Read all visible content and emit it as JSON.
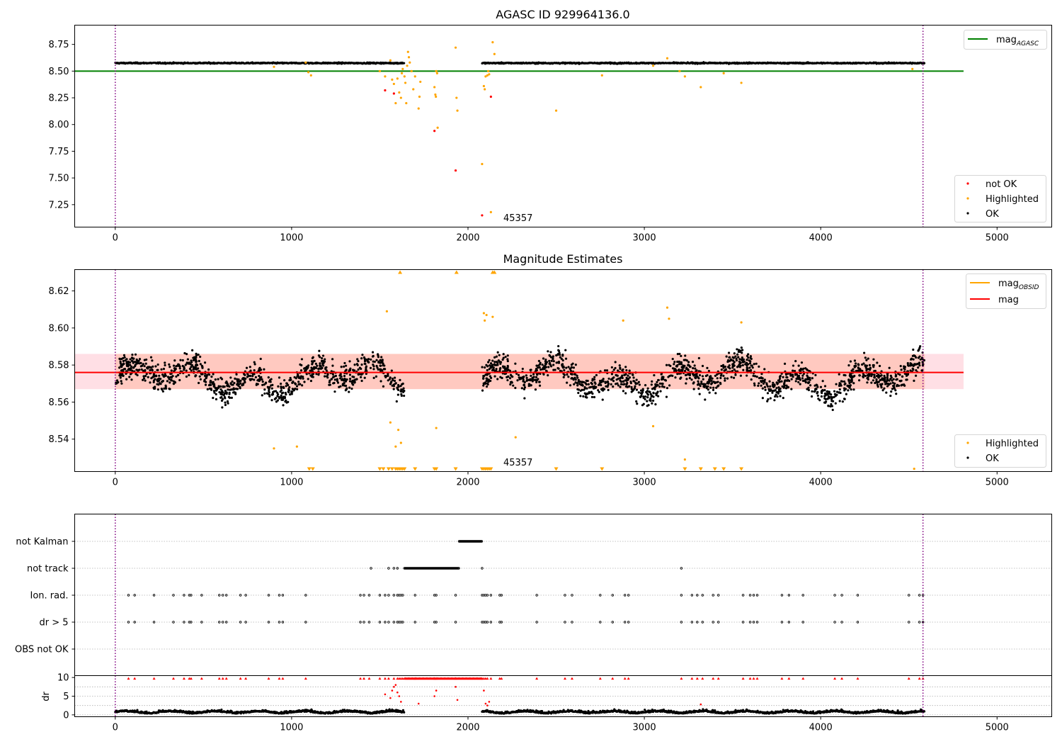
{
  "chart_data": [
    {
      "type": "scatter",
      "title": "AGASC ID 929964136.0",
      "xlim": [
        -230,
        5310
      ],
      "ylim": [
        7.04,
        8.93
      ],
      "xticks": [
        "0",
        "1000",
        "2000",
        "3000",
        "4000",
        "5000"
      ],
      "yticks": [
        "7.25",
        "7.50",
        "7.75",
        "8.00",
        "8.25",
        "8.50",
        "8.75"
      ],
      "annotation": "45357",
      "legend_top": [
        {
          "label_main": "mag",
          "label_sub": "AGASC",
          "color": "#008000"
        }
      ],
      "legend_bottom": [
        {
          "label": "not OK",
          "color": "#ff0000"
        },
        {
          "label": "Highlighted",
          "color": "#ffa500"
        },
        {
          "label": "OK",
          "color": "#000000"
        }
      ],
      "mag_agasc": 8.5,
      "mag_agasc_xrange": [
        -230,
        4810
      ],
      "vlines_x": [
        0,
        4580
      ],
      "ok_band": {
        "segments": [
          [
            0,
            1640
          ],
          [
            2080,
            4590
          ]
        ],
        "level": 8.575,
        "scatter": 0.012
      },
      "highlighted_points": [
        [
          900,
          8.54
        ],
        [
          1080,
          8.58
        ],
        [
          1095,
          8.49
        ],
        [
          1110,
          8.46
        ],
        [
          1500,
          8.5
        ],
        [
          1530,
          8.45
        ],
        [
          1560,
          8.6
        ],
        [
          1570,
          8.42
        ],
        [
          1580,
          8.38
        ],
        [
          1590,
          8.2
        ],
        [
          1600,
          8.43
        ],
        [
          1610,
          8.3
        ],
        [
          1620,
          8.25
        ],
        [
          1625,
          8.48
        ],
        [
          1630,
          8.52
        ],
        [
          1640,
          8.45
        ],
        [
          1645,
          8.39
        ],
        [
          1650,
          8.2
        ],
        [
          1655,
          8.55
        ],
        [
          1660,
          8.68
        ],
        [
          1665,
          8.63
        ],
        [
          1670,
          8.58
        ],
        [
          1680,
          8.5
        ],
        [
          1690,
          8.33
        ],
        [
          1700,
          8.45
        ],
        [
          1720,
          8.15
        ],
        [
          1725,
          8.26
        ],
        [
          1730,
          8.4
        ],
        [
          1810,
          8.35
        ],
        [
          1815,
          8.28
        ],
        [
          1818,
          8.26
        ],
        [
          1820,
          8.5
        ],
        [
          1825,
          8.48
        ],
        [
          1828,
          7.97
        ],
        [
          1930,
          8.72
        ],
        [
          1935,
          8.25
        ],
        [
          1940,
          8.13
        ],
        [
          2080,
          7.63
        ],
        [
          2090,
          8.36
        ],
        [
          2095,
          8.33
        ],
        [
          2100,
          8.45
        ],
        [
          2110,
          8.46
        ],
        [
          2115,
          8.5
        ],
        [
          2120,
          8.47
        ],
        [
          2130,
          7.18
        ],
        [
          2140,
          8.77
        ],
        [
          2150,
          8.66
        ],
        [
          2500,
          8.13
        ],
        [
          2760,
          8.46
        ],
        [
          3050,
          8.55
        ],
        [
          3130,
          8.62
        ],
        [
          3200,
          8.5
        ],
        [
          3230,
          8.45
        ],
        [
          3320,
          8.35
        ],
        [
          3450,
          8.48
        ],
        [
          3550,
          8.39
        ],
        [
          4520,
          8.52
        ]
      ],
      "notok_points": [
        [
          1530,
          8.32
        ],
        [
          1580,
          8.29
        ],
        [
          1810,
          7.94
        ],
        [
          1930,
          7.57
        ],
        [
          2080,
          7.15
        ],
        [
          2130,
          8.26
        ]
      ]
    },
    {
      "type": "scatter",
      "title": "Magnitude Estimates",
      "xlim": [
        -230,
        5310
      ],
      "ylim": [
        8.5225,
        8.6315
      ],
      "xticks": [
        "0",
        "1000",
        "2000",
        "3000",
        "4000",
        "5000"
      ],
      "yticks": [
        "8.54",
        "8.56",
        "8.58",
        "8.60",
        "8.62"
      ],
      "annotation": "45357",
      "legend_top": [
        {
          "label_main": "mag",
          "label_sub": "OBSID",
          "color": "#ffa500"
        },
        {
          "label_main": "mag",
          "label_sub": "",
          "color": "#ff0000"
        }
      ],
      "legend_bottom": [
        {
          "label": "Highlighted",
          "color": "#ffa500"
        },
        {
          "label": "OK",
          "color": "#000000"
        }
      ],
      "mag_line": 8.576,
      "mag_band": [
        8.567,
        8.586
      ],
      "band_xrange": [
        -230,
        4810
      ],
      "band_dark_xrange": [
        0,
        4590
      ],
      "vlines_x": [
        0,
        4580
      ],
      "ok_band": {
        "segments": [
          [
            0,
            1640
          ],
          [
            2080,
            4590
          ]
        ],
        "level": 8.573,
        "scatter": 0.009
      },
      "highlighted_points": [
        [
          900,
          8.535
        ],
        [
          1030,
          8.536
        ],
        [
          1540,
          8.609
        ],
        [
          1560,
          8.549
        ],
        [
          1590,
          8.536
        ],
        [
          1605,
          8.545
        ],
        [
          1620,
          8.538
        ],
        [
          1820,
          8.546
        ],
        [
          2090,
          8.608
        ],
        [
          2095,
          8.604
        ],
        [
          2105,
          8.607
        ],
        [
          2140,
          8.606
        ],
        [
          2270,
          8.541
        ],
        [
          2880,
          8.604
        ],
        [
          3050,
          8.547
        ],
        [
          3130,
          8.611
        ],
        [
          3140,
          8.605
        ],
        [
          3230,
          8.529
        ],
        [
          3550,
          8.603
        ],
        [
          4530,
          8.524
        ]
      ],
      "up_markers_x": [
        1615,
        1935,
        2140,
        2150
      ],
      "down_markers_x": [
        1100,
        1120,
        1500,
        1520,
        1550,
        1570,
        1590,
        1600,
        1610,
        1620,
        1630,
        1640,
        1700,
        1810,
        1820,
        1930,
        2080,
        2090,
        2100,
        2110,
        2120,
        2130,
        2500,
        2760,
        3230,
        3320,
        3400,
        3450,
        3550
      ]
    },
    {
      "type": "scatter",
      "title": "",
      "xlim": [
        -230,
        5310
      ],
      "xticks": [
        "0",
        "1000",
        "2000",
        "3000",
        "4000",
        "5000"
      ],
      "flag_rows": [
        "not Kalman",
        "not track",
        "Ion. rad.",
        "dr > 5",
        "OBS not OK"
      ],
      "dr_ylabel": "dr",
      "dr_yticks": [
        "0",
        "5",
        "10"
      ],
      "dr_ylim": [
        -0.5,
        10.5
      ],
      "vlines_x": [
        0,
        4580
      ],
      "not_kalman_range": [
        1950,
        2080
      ],
      "not_track_range": [
        1640,
        1950
      ],
      "not_track_extra_x": [
        1450,
        1550,
        1580,
        1600,
        2080,
        3210
      ],
      "ion_rad_x": [
        75,
        110,
        220,
        330,
        390,
        420,
        430,
        490,
        590,
        610,
        630,
        710,
        740,
        870,
        930,
        950,
        1080,
        1390,
        1410,
        1440,
        1500,
        1530,
        1550,
        1580,
        1600,
        1610,
        1620,
        1630,
        1700,
        1810,
        1820,
        1930,
        2080,
        2090,
        2100,
        2110,
        2130,
        2180,
        2190,
        2390,
        2550,
        2590,
        2750,
        2820,
        2890,
        2910,
        3210,
        3270,
        3300,
        3330,
        3390,
        3420,
        3560,
        3600,
        3620,
        3640,
        3780,
        3820,
        3900,
        4080,
        4120,
        4210,
        4500,
        4560,
        4580
      ],
      "dr_gt5_x": [
        75,
        110,
        220,
        330,
        390,
        420,
        430,
        490,
        590,
        610,
        630,
        710,
        740,
        870,
        930,
        950,
        1080,
        1390,
        1410,
        1440,
        1500,
        1530,
        1550,
        1580,
        1600,
        1610,
        1620,
        1630,
        1700,
        1810,
        1820,
        1930,
        2080,
        2090,
        2100,
        2110,
        2130,
        2180,
        2190,
        2390,
        2550,
        2590,
        2750,
        2820,
        2890,
        2910,
        3210,
        3270,
        3300,
        3330,
        3390,
        3420,
        3560,
        3600,
        3620,
        3640,
        3780,
        3820,
        3900,
        4080,
        4120,
        4210,
        4500,
        4560,
        4580
      ],
      "dr_clip_x": [
        75,
        110,
        220,
        330,
        390,
        420,
        430,
        490,
        590,
        610,
        630,
        710,
        740,
        870,
        930,
        950,
        1080,
        1390,
        1410,
        1440,
        1500,
        1530,
        1550,
        1580,
        1600,
        1610,
        1620,
        1630,
        1700,
        1810,
        1820,
        1930,
        2080,
        2090,
        2100,
        2110,
        2130,
        2180,
        2190,
        2390,
        2550,
        2590,
        2750,
        2820,
        2890,
        2910,
        3210,
        3270,
        3300,
        3330,
        3390,
        3420,
        3560,
        3600,
        3620,
        3640,
        3780,
        3820,
        3900,
        4080,
        4120,
        4210,
        4500,
        4560,
        4580
      ],
      "dr_clip_dense_range": [
        1640,
        2080
      ],
      "dr_mid_points": [
        [
          1530,
          5.5
        ],
        [
          1560,
          4.5
        ],
        [
          1570,
          6.5
        ],
        [
          1580,
          7.5
        ],
        [
          1590,
          8.0
        ],
        [
          1600,
          6.0
        ],
        [
          1610,
          5.0
        ],
        [
          1620,
          3.5
        ],
        [
          1720,
          3.0
        ],
        [
          1810,
          5.0
        ],
        [
          1820,
          6.5
        ],
        [
          1930,
          7.5
        ],
        [
          1940,
          4.0
        ],
        [
          2090,
          6.5
        ],
        [
          2100,
          3.0
        ],
        [
          2110,
          2.5
        ],
        [
          2120,
          3.5
        ],
        [
          3320,
          2.8
        ]
      ],
      "dr_base_segments": [
        [
          0,
          1640
        ],
        [
          2080,
          4590
        ]
      ],
      "dr_base_level": 0.6
    }
  ]
}
